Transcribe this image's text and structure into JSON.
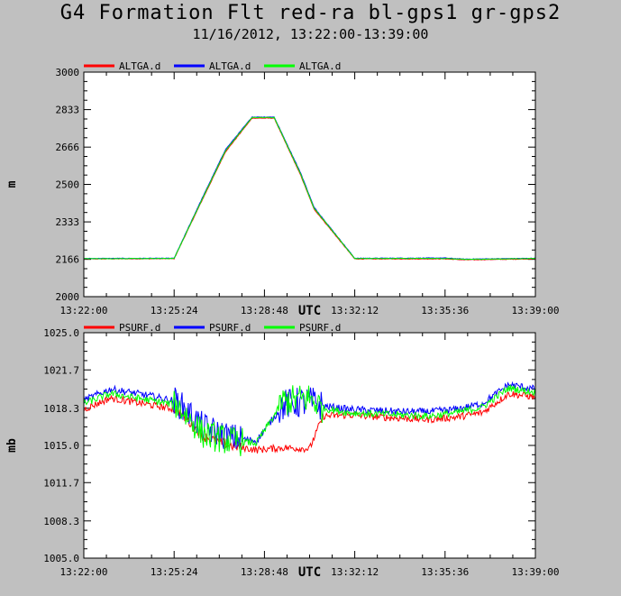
{
  "title": "G4 Formation Flt red-ra bl-gps1 gr-gps2",
  "subtitle": "11/16/2012, 13:22:00-13:39:00",
  "chart_data": [
    {
      "type": "line",
      "ylabel": "m",
      "xlabel": "UTC",
      "ylim": [
        2000,
        3000
      ],
      "y_ticks": [
        "3000",
        "2833",
        "2666",
        "2500",
        "2333",
        "2166",
        "2000"
      ],
      "xlim_labels": [
        "13:22:00",
        "13:39:00"
      ],
      "x_ticks": [
        "13:22:00",
        "13:25:24",
        "13:28:48",
        "13:32:12",
        "13:35:36",
        "13:39:00"
      ],
      "legend_position": "top-left",
      "grid": false,
      "series": [
        {
          "name": "ALTGA.d",
          "color": "#ff0000",
          "x": [
            "13:22:00",
            "13:25:24",
            "13:26:20",
            "13:27:20",
            "13:28:20",
            "13:29:10",
            "13:30:10",
            "13:30:40",
            "13:32:12",
            "13:35:36",
            "13:36:20",
            "13:39:00"
          ],
          "values": [
            2168,
            2169,
            2400,
            2645,
            2795,
            2795,
            2540,
            2390,
            2168,
            2168,
            2164,
            2168
          ]
        },
        {
          "name": "ALTGA.d",
          "color": "#0000ff",
          "x": [
            "13:22:00",
            "13:25:24",
            "13:26:20",
            "13:27:20",
            "13:28:20",
            "13:29:10",
            "13:30:10",
            "13:30:40",
            "13:32:12",
            "13:35:36",
            "13:36:20",
            "13:39:00"
          ],
          "values": [
            2170,
            2171,
            2408,
            2655,
            2800,
            2800,
            2550,
            2398,
            2171,
            2172,
            2167,
            2171
          ]
        },
        {
          "name": "ALTGA.d",
          "color": "#00ff00",
          "x": [
            "13:22:00",
            "13:25:24",
            "13:26:20",
            "13:27:20",
            "13:28:20",
            "13:29:10",
            "13:30:10",
            "13:30:40",
            "13:32:12",
            "13:35:36",
            "13:36:20",
            "13:39:00"
          ],
          "values": [
            2169,
            2170,
            2404,
            2650,
            2798,
            2798,
            2545,
            2394,
            2170,
            2170,
            2166,
            2170
          ]
        }
      ]
    },
    {
      "type": "line",
      "ylabel": "mb",
      "xlabel": "UTC",
      "ylim": [
        1005.0,
        1025.0
      ],
      "y_ticks": [
        "1025.0",
        "1021.7",
        "1018.3",
        "1015.0",
        "1011.7",
        "1008.3",
        "1005.0"
      ],
      "x_ticks": [
        "13:22:00",
        "13:25:24",
        "13:28:48",
        "13:32:12",
        "13:35:36",
        "13:39:00"
      ],
      "legend_position": "top-left",
      "grid": false,
      "series": [
        {
          "name": "PSURF.d",
          "color": "#ff0000",
          "x": [
            "13:22:00",
            "13:23:00",
            "13:24:30",
            "13:25:30",
            "13:26:30",
            "13:27:30",
            "13:28:30",
            "13:29:30",
            "13:30:30",
            "13:31:00",
            "13:32:00",
            "13:34:00",
            "13:35:00",
            "13:36:00",
            "13:37:00",
            "13:38:00",
            "13:39:00"
          ],
          "values": [
            1018.2,
            1019.2,
            1018.6,
            1018.2,
            1015.8,
            1015.0,
            1014.6,
            1014.8,
            1014.7,
            1017.6,
            1017.7,
            1017.4,
            1017.3,
            1017.5,
            1017.9,
            1019.6,
            1019.3
          ]
        },
        {
          "name": "PSURF.d",
          "color": "#0000ff",
          "x": [
            "13:22:00",
            "13:23:00",
            "13:24:30",
            "13:25:30",
            "13:26:30",
            "13:27:30",
            "13:28:30",
            "13:29:30",
            "13:30:30",
            "13:31:00",
            "13:32:00",
            "13:34:00",
            "13:35:00",
            "13:36:00",
            "13:37:00",
            "13:38:00",
            "13:39:00"
          ],
          "values": [
            1019.0,
            1020.0,
            1019.4,
            1018.9,
            1016.6,
            1015.7,
            1015.4,
            1018.6,
            1018.9,
            1018.5,
            1018.2,
            1018.0,
            1018.0,
            1018.2,
            1018.7,
            1020.4,
            1020.0
          ]
        },
        {
          "name": "PSURF.d",
          "color": "#00ff00",
          "x": [
            "13:22:00",
            "13:23:00",
            "13:24:30",
            "13:25:30",
            "13:26:30",
            "13:27:30",
            "13:28:30",
            "13:29:30",
            "13:30:30",
            "13:31:00",
            "13:32:00",
            "13:34:00",
            "13:35:00",
            "13:36:00",
            "13:37:00",
            "13:38:00",
            "13:39:00"
          ],
          "values": [
            1018.7,
            1019.6,
            1019.0,
            1018.6,
            1016.0,
            1015.4,
            1015.2,
            1018.9,
            1019.2,
            1018.3,
            1017.9,
            1017.7,
            1017.6,
            1017.9,
            1018.4,
            1020.1,
            1019.7
          ]
        }
      ]
    }
  ]
}
